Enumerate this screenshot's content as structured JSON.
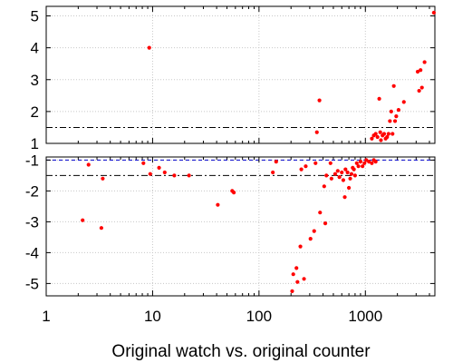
{
  "chart_data": {
    "type": "scatter",
    "title": "",
    "xlabel": "Original watch vs. original counter",
    "x_scale": "log",
    "xlim": [
      1,
      4500
    ],
    "x_ticks": [
      1,
      10,
      100,
      1000
    ],
    "x_tick_labels": [
      "1",
      "10",
      "100",
      "1000"
    ],
    "grid": true,
    "marker_color": "#ff0000",
    "threshold_colors": {
      "black": "#000000",
      "blue": "#0000cc"
    },
    "panels": [
      {
        "name": "upper",
        "ylim": [
          1,
          5.3
        ],
        "y_ticks": [
          1,
          2,
          3,
          4,
          5
        ],
        "y_tick_labels": [
          "1",
          "2",
          "3",
          "4",
          "5"
        ],
        "reference_lines": [
          {
            "y": 1.5,
            "color": "#000000",
            "style": "dash-dot"
          },
          {
            "y": 1.0,
            "color": "#0000cc",
            "style": "dashed"
          }
        ],
        "points": [
          [
            9.3,
            4.0
          ],
          [
            350,
            1.35
          ],
          [
            370,
            2.35
          ],
          [
            1150,
            1.15
          ],
          [
            1200,
            1.25
          ],
          [
            1250,
            1.3
          ],
          [
            1300,
            1.2
          ],
          [
            1350,
            2.4
          ],
          [
            1380,
            1.35
          ],
          [
            1400,
            1.1
          ],
          [
            1450,
            1.25
          ],
          [
            1500,
            1.3
          ],
          [
            1550,
            1.15
          ],
          [
            1600,
            1.2
          ],
          [
            1650,
            1.3
          ],
          [
            1700,
            1.7
          ],
          [
            1750,
            2.0
          ],
          [
            1800,
            1.3
          ],
          [
            1850,
            2.8
          ],
          [
            1900,
            1.7
          ],
          [
            1950,
            1.85
          ],
          [
            2050,
            2.05
          ],
          [
            2300,
            2.3
          ],
          [
            3100,
            3.25
          ],
          [
            3200,
            2.65
          ],
          [
            3300,
            3.3
          ],
          [
            3400,
            2.75
          ],
          [
            3600,
            3.55
          ],
          [
            4400,
            5.1
          ]
        ]
      },
      {
        "name": "lower",
        "ylim": [
          -5.4,
          -0.9
        ],
        "y_ticks": [
          -1,
          -2,
          -3,
          -4,
          -5
        ],
        "y_tick_labels": [
          "-1",
          "-2",
          "-3",
          "-4",
          "-5"
        ],
        "reference_lines": [
          {
            "y": -1.0,
            "color": "#0000cc",
            "style": "dashed"
          },
          {
            "y": -1.5,
            "color": "#000000",
            "style": "dash-dot"
          }
        ],
        "points": [
          [
            2.2,
            -2.95
          ],
          [
            2.5,
            -1.15
          ],
          [
            3.3,
            -3.2
          ],
          [
            3.4,
            -1.6
          ],
          [
            8.2,
            -1.1
          ],
          [
            9.5,
            -1.45
          ],
          [
            11.5,
            -1.25
          ],
          [
            13,
            -1.4
          ],
          [
            16,
            -1.5
          ],
          [
            22,
            -1.5
          ],
          [
            41,
            -2.45
          ],
          [
            56,
            -2.0
          ],
          [
            58,
            -2.05
          ],
          [
            135,
            -1.4
          ],
          [
            145,
            -1.05
          ],
          [
            205,
            -5.25
          ],
          [
            210,
            -4.7
          ],
          [
            225,
            -4.5
          ],
          [
            230,
            -4.95
          ],
          [
            245,
            -3.8
          ],
          [
            250,
            -1.3
          ],
          [
            265,
            -4.85
          ],
          [
            275,
            -1.2
          ],
          [
            305,
            -3.55
          ],
          [
            330,
            -3.3
          ],
          [
            340,
            -1.1
          ],
          [
            375,
            -2.7
          ],
          [
            410,
            -1.85
          ],
          [
            420,
            -3.05
          ],
          [
            430,
            -1.5
          ],
          [
            470,
            -1.1
          ],
          [
            480,
            -1.6
          ],
          [
            520,
            -1.45
          ],
          [
            550,
            -1.35
          ],
          [
            570,
            -1.55
          ],
          [
            600,
            -1.4
          ],
          [
            620,
            -1.65
          ],
          [
            640,
            -2.2
          ],
          [
            650,
            -1.3
          ],
          [
            680,
            -1.4
          ],
          [
            700,
            -1.9
          ],
          [
            720,
            -1.6
          ],
          [
            740,
            -1.45
          ],
          [
            760,
            -1.25
          ],
          [
            780,
            -1.3
          ],
          [
            800,
            -1.5
          ],
          [
            830,
            -1.1
          ],
          [
            860,
            -1.2
          ],
          [
            900,
            -1.05
          ],
          [
            940,
            -1.2
          ],
          [
            980,
            -1.1
          ],
          [
            1020,
            -1.0
          ],
          [
            1080,
            -1.05
          ],
          [
            1150,
            -1.1
          ],
          [
            1200,
            -1.0
          ],
          [
            1250,
            -1.05
          ]
        ]
      }
    ]
  }
}
